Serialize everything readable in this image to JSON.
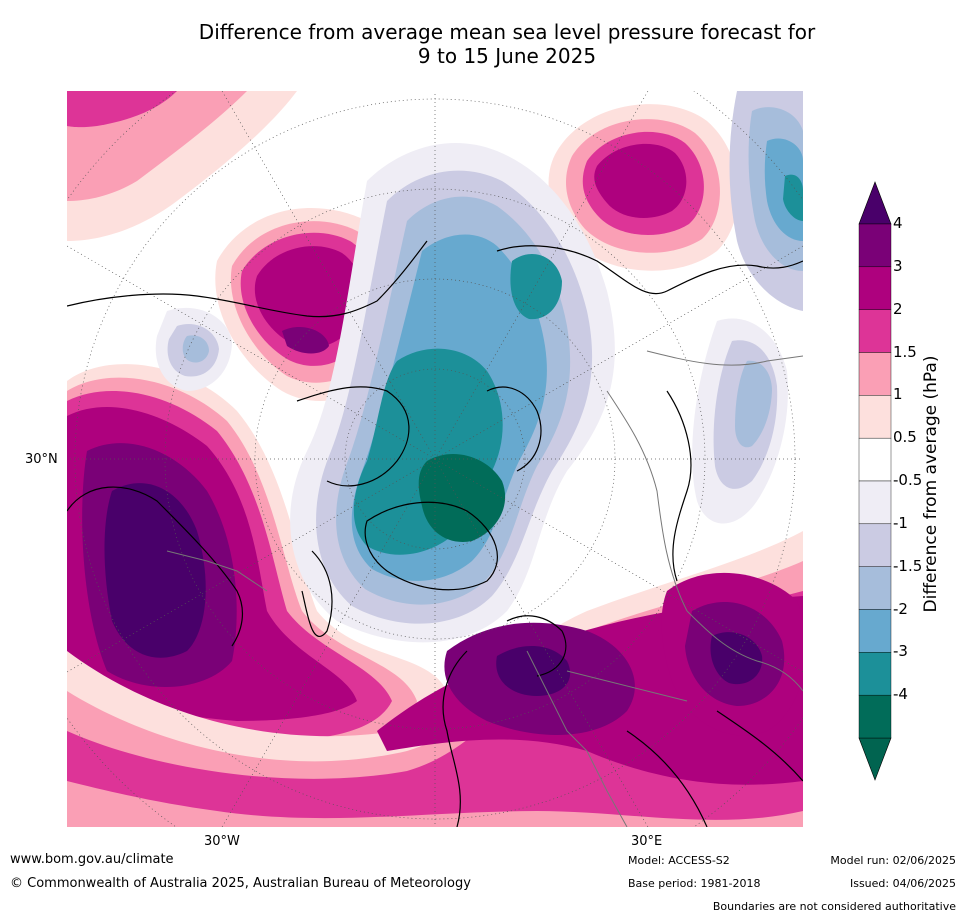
{
  "title": {
    "line1": "Difference from average mean sea level pressure forecast for",
    "line2": "9 to 15 June 2025"
  },
  "axis": {
    "lat_label": "30°N",
    "lon_west_label": "30°W",
    "lon_east_label": "30°E"
  },
  "colorbar": {
    "title": "Difference from average (hPa)",
    "labels": [
      "4",
      "3",
      "2",
      "1.5",
      "1",
      "0.5",
      "-0.5",
      "-1",
      "-1.5",
      "-2",
      "-3",
      "-4"
    ],
    "colors": [
      "#7a0177",
      "#ae017e",
      "#dd3497",
      "#fa9fb5",
      "#fde0dd",
      "#ffffff",
      "#efedf5",
      "#cbcbe3",
      "#a6bddb",
      "#67a9cf",
      "#1c9099",
      "#016c59"
    ],
    "over_color": "#49006a",
    "under_color": "#016450"
  },
  "footer": {
    "website": "www.bom.gov.au/climate",
    "copyright": "© Commonwealth of Australia 2025, Australian Bureau of Meteorology",
    "model": "Model: ACCESS-S2",
    "base_period": "Base period: 1981-2018",
    "model_run": "Model run: 02/06/2025",
    "issued": "Issued: 04/06/2025",
    "disclaimer": "Boundaries are not considered authoritative"
  }
}
